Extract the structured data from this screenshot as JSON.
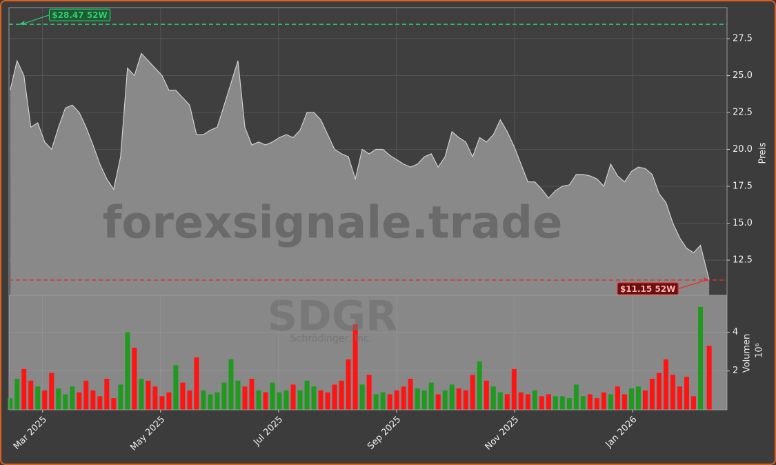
{
  "chart_data": {
    "type": "area",
    "watermark": "forexsignale.trade",
    "symbol": "SDGR",
    "company": "Schrödinger, Inc.",
    "grid": true,
    "x": [
      2.45,
      2.567,
      2.684,
      2.801,
      2.918,
      3.035,
      3.152,
      3.269,
      3.386,
      3.503,
      3.62,
      3.737,
      3.854,
      3.971,
      4.088,
      4.205,
      4.322,
      4.439,
      4.556,
      4.673,
      4.79,
      4.907,
      5.024,
      5.141,
      5.258,
      5.375,
      5.492,
      5.609,
      5.726,
      5.843,
      5.96,
      6.077,
      6.194,
      6.311,
      6.428,
      6.545,
      6.662,
      6.779,
      6.896,
      7.013,
      7.13,
      7.247,
      7.364,
      7.481,
      7.598,
      7.715,
      7.832,
      7.949,
      8.066,
      8.183,
      8.3,
      8.417,
      8.534,
      8.651,
      8.768,
      8.885,
      9.002,
      9.119,
      9.236,
      9.353,
      9.47,
      9.587,
      9.704,
      9.821,
      9.938,
      10.055,
      10.172,
      10.289,
      10.406,
      10.523,
      10.64,
      10.757,
      10.874,
      10.991,
      11.108,
      11.225,
      11.342,
      11.459,
      11.576,
      11.693,
      11.81,
      11.927,
      12.044,
      12.161,
      12.278,
      12.395,
      12.512,
      12.629,
      12.746,
      12.863,
      12.98,
      13.097,
      13.214,
      13.331,
      13.448,
      13.565,
      13.682,
      13.799,
      13.916,
      14.033,
      14.15,
      14.298
    ],
    "xlim": [
      2.43,
      14.6
    ],
    "xticks": [
      {
        "value": 3,
        "label": "Mar 2025"
      },
      {
        "value": 5,
        "label": "May 2025"
      },
      {
        "value": 7,
        "label": "Jul 2025"
      },
      {
        "value": 9,
        "label": "Sep 2025"
      },
      {
        "value": 11,
        "label": "Nov 2025"
      },
      {
        "value": 13,
        "label": "Jan 2026"
      }
    ],
    "ylim": [
      10.12,
      29.6
    ],
    "yticks": [
      12.5,
      {
        "value": 15,
        "label": "15.0"
      },
      17.5,
      {
        "value": 20,
        "label": "20.0"
      },
      22.5,
      {
        "value": 25,
        "label": "25.0"
      },
      27.5
    ],
    "ylabel": "Preis",
    "price": {
      "color": "#d0d0d0",
      "fill": "#898989",
      "values": [
        24.0,
        26.0,
        25.0,
        21.5,
        21.8,
        20.5,
        20.0,
        21.5,
        22.8,
        23.0,
        22.5,
        21.5,
        20.3,
        19.0,
        18.0,
        17.3,
        19.5,
        25.5,
        25.0,
        26.5,
        26.0,
        25.5,
        25.0,
        24.0,
        24.0,
        23.5,
        23.0,
        21.0,
        21.0,
        21.3,
        21.5,
        23.0,
        24.5,
        26.0,
        21.5,
        20.3,
        20.5,
        20.3,
        20.5,
        20.8,
        21.0,
        20.8,
        21.3,
        22.5,
        22.5,
        22.0,
        21.0,
        20.0,
        19.7,
        19.5,
        18.0,
        20.0,
        19.7,
        20.0,
        20.0,
        19.6,
        19.3,
        19.0,
        18.8,
        19.0,
        19.5,
        19.7,
        18.8,
        19.5,
        21.2,
        20.8,
        20.5,
        19.5,
        20.8,
        20.5,
        21.0,
        22.0,
        21.2,
        20.2,
        19.0,
        17.8,
        17.8,
        17.3,
        16.7,
        17.2,
        17.5,
        17.6,
        18.3,
        18.3,
        18.2,
        18.0,
        17.5,
        19.0,
        18.2,
        17.8,
        18.5,
        18.8,
        18.7,
        18.3,
        17.0,
        16.4,
        15.0,
        14.0,
        13.3,
        13.0,
        13.5,
        11.15
      ]
    },
    "volume": {
      "ylim": [
        0,
        5.9
      ],
      "yticks": [
        2,
        4
      ],
      "ylabel": "Volumen",
      "scale_label": "10⁶",
      "up_color": "#1f9a1f",
      "down_color": "#ff1414",
      "values": [
        0.6,
        1.6,
        2.1,
        1.5,
        1.2,
        1.0,
        1.9,
        1.1,
        0.8,
        1.2,
        0.9,
        1.5,
        1.0,
        0.7,
        1.6,
        0.6,
        1.3,
        4.0,
        3.2,
        1.6,
        1.5,
        1.2,
        0.7,
        0.9,
        2.3,
        1.4,
        1.0,
        2.7,
        1.0,
        0.8,
        0.9,
        1.4,
        2.6,
        1.5,
        1.2,
        1.6,
        1.0,
        0.9,
        1.4,
        0.9,
        1.0,
        1.3,
        1.0,
        1.5,
        1.2,
        1.0,
        0.9,
        1.3,
        1.5,
        2.6,
        4.4,
        1.3,
        1.8,
        0.8,
        0.9,
        0.8,
        1.0,
        1.2,
        1.6,
        1.1,
        1.0,
        1.4,
        0.8,
        1.0,
        1.3,
        1.1,
        1.0,
        1.8,
        2.5,
        1.5,
        1.2,
        0.9,
        0.8,
        2.1,
        0.9,
        0.8,
        1.0,
        0.7,
        0.8,
        0.7,
        0.7,
        0.6,
        1.3,
        0.7,
        0.8,
        0.6,
        0.9,
        0.8,
        1.2,
        0.8,
        1.1,
        1.2,
        1.0,
        1.6,
        1.9,
        2.6,
        1.8,
        1.2,
        1.7,
        0.7,
        5.3,
        3.3
      ]
    },
    "annotations": [
      {
        "label": "$28.47 52W",
        "value": 28.47,
        "x": 2.6,
        "color": "#2ecc71"
      },
      {
        "label": "$11.15 52W",
        "value": 11.15,
        "x": 14.298,
        "color": "#e03030"
      }
    ]
  }
}
